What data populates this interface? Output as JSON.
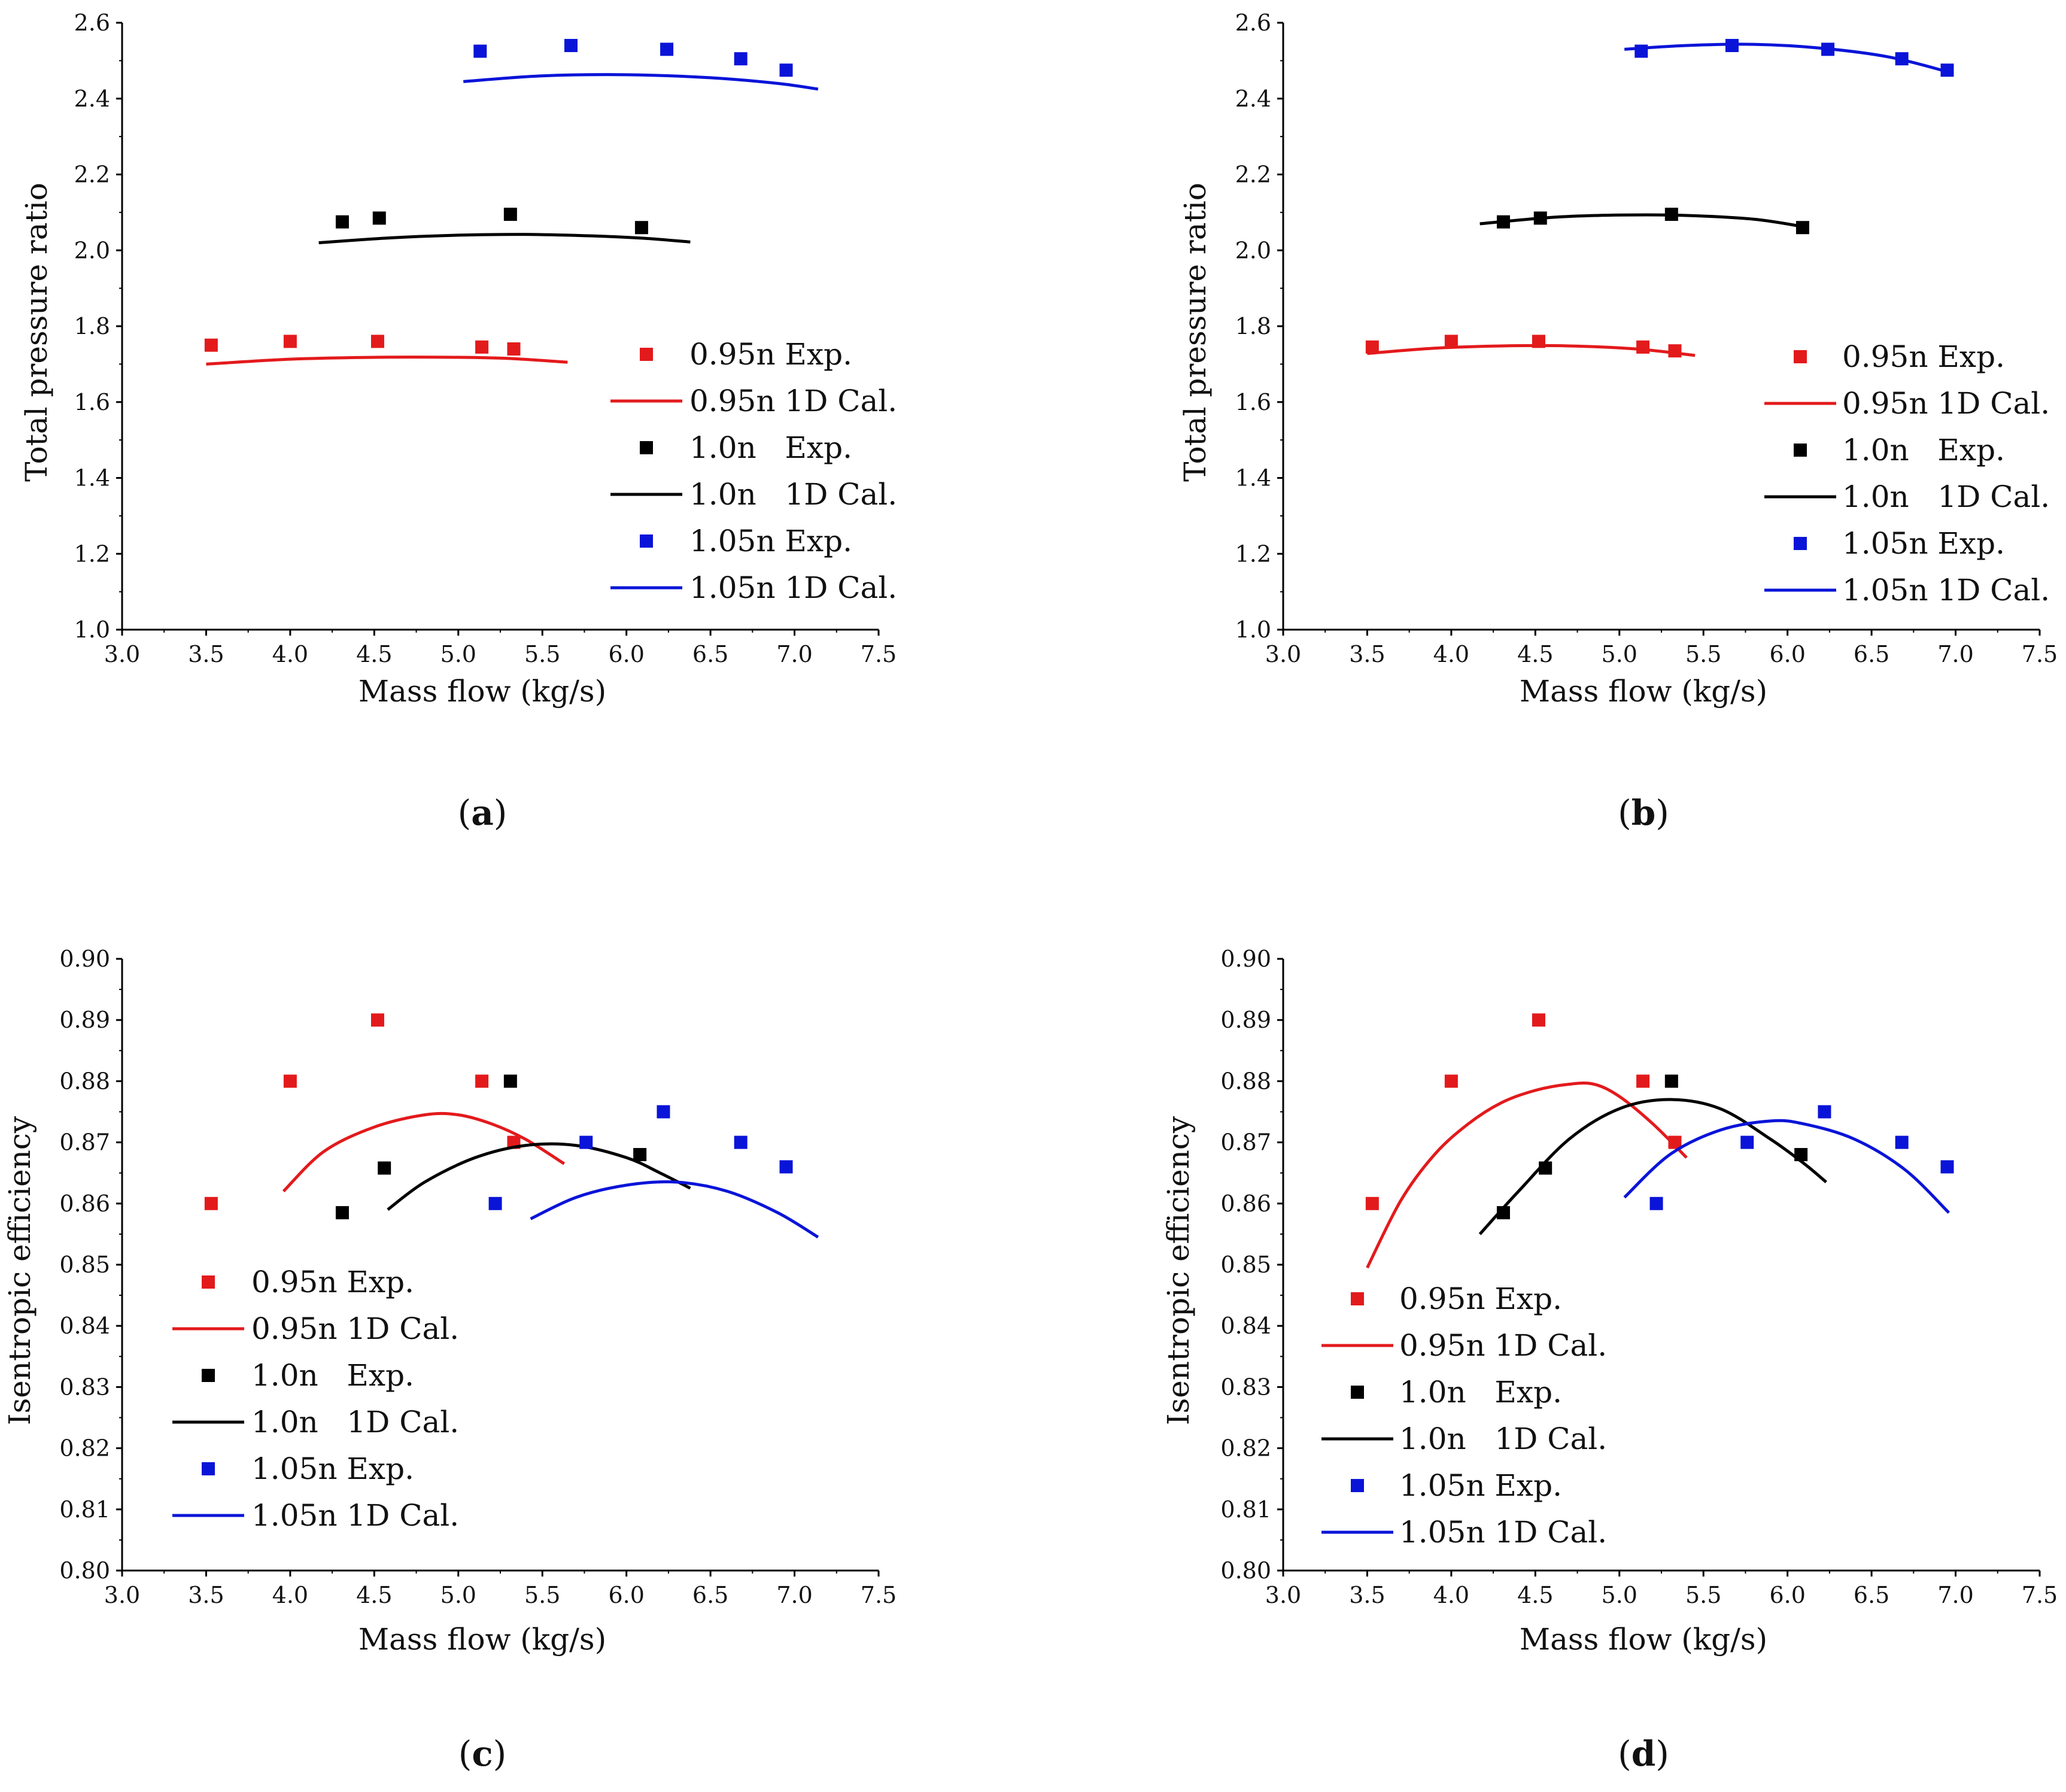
{
  "colors": {
    "red": "#e31a1c",
    "black": "#000000",
    "blue": "#0a14d8"
  },
  "chart_data": [
    {
      "id": "a",
      "type": "scatter+line",
      "panel_label": "a",
      "xlabel": "Mass flow (kg/s)",
      "ylabel": "Total pressure ratio",
      "xlim": [
        3.0,
        7.5
      ],
      "ylim": [
        1.0,
        2.6
      ],
      "xticks": [
        3.0,
        3.5,
        4.0,
        4.5,
        5.0,
        5.5,
        6.0,
        6.5,
        7.0,
        7.5
      ],
      "yticks": [
        1.0,
        1.2,
        1.4,
        1.6,
        1.8,
        2.0,
        2.2,
        2.4,
        2.6
      ],
      "x_tick_labels": [
        "3.0",
        "3.5",
        "4.0",
        "4.5",
        "5.0",
        "5.5",
        "6.0",
        "6.5",
        "7.0",
        "7.5"
      ],
      "y_tick_labels": [
        "1.0",
        "1.2",
        "1.4",
        "1.6",
        "1.8",
        "2.0",
        "2.2",
        "2.4",
        "2.6"
      ],
      "legend_position": "right",
      "legend": [
        "0.95n Exp.",
        "0.95n 1D Cal.",
        "1.0n   Exp.",
        "1.0n   1D Cal.",
        "1.05n Exp.",
        "1.05n 1D Cal."
      ],
      "series": [
        {
          "name": "0.95n Exp.",
          "kind": "scatter",
          "color": "red",
          "x": [
            3.53,
            4.0,
            4.52,
            5.14,
            5.33
          ],
          "y": [
            1.75,
            1.76,
            1.76,
            1.745,
            1.74
          ]
        },
        {
          "name": "0.95n 1D Cal.",
          "kind": "line",
          "color": "red",
          "x": [
            3.5,
            4.0,
            4.5,
            5.0,
            5.3,
            5.65
          ],
          "y": [
            1.7,
            1.713,
            1.718,
            1.718,
            1.715,
            1.705
          ]
        },
        {
          "name": "1.0n   Exp.",
          "kind": "scatter",
          "color": "black",
          "x": [
            4.31,
            4.53,
            5.31,
            6.09
          ],
          "y": [
            2.075,
            2.085,
            2.095,
            2.06
          ]
        },
        {
          "name": "1.0n   1D Cal.",
          "kind": "line",
          "color": "black",
          "x": [
            4.17,
            4.6,
            5.0,
            5.4,
            5.8,
            6.1,
            6.38
          ],
          "y": [
            2.02,
            2.033,
            2.04,
            2.042,
            2.038,
            2.032,
            2.022
          ]
        },
        {
          "name": "1.05n Exp.",
          "kind": "scatter",
          "color": "blue",
          "x": [
            5.13,
            5.67,
            6.24,
            6.68,
            6.95
          ],
          "y": [
            2.525,
            2.54,
            2.53,
            2.505,
            2.475
          ]
        },
        {
          "name": "1.05n 1D Cal.",
          "kind": "line",
          "color": "blue",
          "x": [
            5.03,
            5.5,
            6.0,
            6.5,
            6.9,
            7.14
          ],
          "y": [
            2.445,
            2.46,
            2.463,
            2.455,
            2.44,
            2.425
          ]
        }
      ]
    },
    {
      "id": "b",
      "type": "scatter+line",
      "panel_label": "b",
      "xlabel": "Mass flow (kg/s)",
      "ylabel": "Total pressure ratio",
      "xlim": [
        3.0,
        7.5
      ],
      "ylim": [
        1.0,
        2.6
      ],
      "xticks": [
        3.0,
        3.5,
        4.0,
        4.5,
        5.0,
        5.5,
        6.0,
        6.5,
        7.0,
        7.5
      ],
      "yticks": [
        1.0,
        1.2,
        1.4,
        1.6,
        1.8,
        2.0,
        2.2,
        2.4,
        2.6
      ],
      "x_tick_labels": [
        "3.0",
        "3.5",
        "4.0",
        "4.5",
        "5.0",
        "5.5",
        "6.0",
        "6.5",
        "7.0",
        "7.5"
      ],
      "y_tick_labels": [
        "1.0",
        "1.2",
        "1.4",
        "1.6",
        "1.8",
        "2.0",
        "2.2",
        "2.4",
        "2.6"
      ],
      "legend_position": "right",
      "legend": [
        "0.95n Exp.",
        "0.95n 1D Cal.",
        "1.0n   Exp.",
        "1.0n   1D Cal.",
        "1.05n Exp.",
        "1.05n 1D Cal."
      ],
      "series": [
        {
          "name": "0.95n Exp.",
          "kind": "scatter",
          "color": "red",
          "x": [
            3.53,
            4.0,
            4.52,
            5.14,
            5.33
          ],
          "y": [
            1.745,
            1.76,
            1.76,
            1.745,
            1.735
          ]
        },
        {
          "name": "0.95n 1D Cal.",
          "kind": "line",
          "color": "red",
          "x": [
            3.5,
            3.9,
            4.3,
            4.7,
            5.1,
            5.45
          ],
          "y": [
            1.728,
            1.742,
            1.748,
            1.748,
            1.74,
            1.723
          ]
        },
        {
          "name": "1.0n   Exp.",
          "kind": "scatter",
          "color": "black",
          "x": [
            4.31,
            4.53,
            5.31,
            6.09
          ],
          "y": [
            2.075,
            2.085,
            2.095,
            2.06
          ]
        },
        {
          "name": "1.0n   1D Cal.",
          "kind": "line",
          "color": "black",
          "x": [
            4.17,
            4.6,
            5.0,
            5.4,
            5.8,
            6.1
          ],
          "y": [
            2.07,
            2.087,
            2.093,
            2.092,
            2.082,
            2.062
          ]
        },
        {
          "name": "1.05n Exp.",
          "kind": "scatter",
          "color": "blue",
          "x": [
            5.13,
            5.67,
            6.24,
            6.68,
            6.95
          ],
          "y": [
            2.525,
            2.54,
            2.53,
            2.505,
            2.475
          ]
        },
        {
          "name": "1.05n 1D Cal.",
          "kind": "line",
          "color": "blue",
          "x": [
            5.03,
            5.4,
            5.8,
            6.2,
            6.6,
            6.96
          ],
          "y": [
            2.53,
            2.54,
            2.543,
            2.533,
            2.51,
            2.47
          ]
        }
      ]
    },
    {
      "id": "c",
      "type": "scatter+line",
      "panel_label": "c",
      "xlabel": "Mass flow (kg/s)",
      "ylabel": "Isentropic efficiency",
      "xlim": [
        3.0,
        7.5
      ],
      "ylim": [
        0.8,
        0.9
      ],
      "xticks": [
        3.0,
        3.5,
        4.0,
        4.5,
        5.0,
        5.5,
        6.0,
        6.5,
        7.0,
        7.5
      ],
      "yticks": [
        0.8,
        0.81,
        0.82,
        0.83,
        0.84,
        0.85,
        0.86,
        0.87,
        0.88,
        0.89,
        0.9
      ],
      "x_tick_labels": [
        "3.0",
        "3.5",
        "4.0",
        "4.5",
        "5.0",
        "5.5",
        "6.0",
        "6.5",
        "7.0",
        "7.5"
      ],
      "y_tick_labels": [
        "0.80",
        "0.81",
        "0.82",
        "0.83",
        "0.84",
        "0.85",
        "0.86",
        "0.87",
        "0.88",
        "0.89",
        "0.90"
      ],
      "legend_position": "left",
      "legend": [
        "0.95n Exp.",
        "0.95n 1D Cal.",
        "1.0n   Exp.",
        "1.0n   1D Cal.",
        "1.05n Exp.",
        "1.05n 1D Cal."
      ],
      "series": [
        {
          "name": "0.95n Exp.",
          "kind": "scatter",
          "color": "red",
          "x": [
            3.53,
            4.0,
            4.52,
            5.14,
            5.33
          ],
          "y": [
            0.86,
            0.88,
            0.89,
            0.88,
            0.87
          ]
        },
        {
          "name": "0.95n 1D Cal.",
          "kind": "line",
          "color": "red",
          "x": [
            3.96,
            4.2,
            4.5,
            4.8,
            5.0,
            5.2,
            5.4,
            5.63
          ],
          "y": [
            0.862,
            0.8685,
            0.8725,
            0.8745,
            0.8745,
            0.873,
            0.8705,
            0.8665
          ]
        },
        {
          "name": "1.0n   Exp.",
          "kind": "scatter",
          "color": "black",
          "x": [
            4.31,
            4.56,
            5.31,
            6.08
          ],
          "y": [
            0.8585,
            0.8658,
            0.88,
            0.868
          ]
        },
        {
          "name": "1.0n   1D Cal.",
          "kind": "line",
          "color": "black",
          "x": [
            4.58,
            4.8,
            5.1,
            5.4,
            5.7,
            6.0,
            6.2,
            6.38
          ],
          "y": [
            0.859,
            0.8635,
            0.8675,
            0.8695,
            0.8695,
            0.8675,
            0.865,
            0.8625
          ]
        },
        {
          "name": "1.05n Exp.",
          "kind": "scatter",
          "color": "blue",
          "x": [
            5.22,
            5.76,
            6.22,
            6.68,
            6.95
          ],
          "y": [
            0.86,
            0.87,
            0.875,
            0.87,
            0.866
          ]
        },
        {
          "name": "1.05n 1D Cal.",
          "kind": "line",
          "color": "blue",
          "x": [
            5.43,
            5.7,
            6.0,
            6.3,
            6.6,
            6.9,
            7.14
          ],
          "y": [
            0.8575,
            0.861,
            0.863,
            0.8635,
            0.862,
            0.8585,
            0.8545
          ]
        }
      ]
    },
    {
      "id": "d",
      "type": "scatter+line",
      "panel_label": "d",
      "xlabel": "Mass flow (kg/s)",
      "ylabel": "Isentropic efficiency",
      "xlim": [
        3.0,
        7.5
      ],
      "ylim": [
        0.8,
        0.9
      ],
      "xticks": [
        3.0,
        3.5,
        4.0,
        4.5,
        5.0,
        5.5,
        6.0,
        6.5,
        7.0,
        7.5
      ],
      "yticks": [
        0.8,
        0.81,
        0.82,
        0.83,
        0.84,
        0.85,
        0.86,
        0.87,
        0.88,
        0.89,
        0.9
      ],
      "x_tick_labels": [
        "3.0",
        "3.5",
        "4.0",
        "4.5",
        "5.0",
        "5.5",
        "6.0",
        "6.5",
        "7.0",
        "7.5"
      ],
      "y_tick_labels": [
        "0.80",
        "0.81",
        "0.82",
        "0.83",
        "0.84",
        "0.85",
        "0.86",
        "0.87",
        "0.88",
        "0.89",
        "0.90"
      ],
      "legend_position": "left",
      "legend": [
        "0.95n Exp.",
        "0.95n 1D Cal.",
        "1.0n   Exp.",
        "1.0n   1D Cal.",
        "1.05n Exp.",
        "1.05n 1D Cal."
      ],
      "series": [
        {
          "name": "0.95n Exp.",
          "kind": "scatter",
          "color": "red",
          "x": [
            3.53,
            4.0,
            4.52,
            5.14,
            5.33
          ],
          "y": [
            0.86,
            0.88,
            0.89,
            0.88,
            0.87
          ]
        },
        {
          "name": "0.95n 1D Cal.",
          "kind": "line",
          "color": "red",
          "x": [
            3.5,
            3.7,
            3.9,
            4.1,
            4.3,
            4.5,
            4.7,
            4.85,
            5.0,
            5.2,
            5.4
          ],
          "y": [
            0.8495,
            0.8605,
            0.868,
            0.873,
            0.8765,
            0.8785,
            0.8795,
            0.8795,
            0.8775,
            0.873,
            0.8675
          ]
        },
        {
          "name": "1.0n   Exp.",
          "kind": "scatter",
          "color": "black",
          "x": [
            4.31,
            4.56,
            5.31,
            6.08
          ],
          "y": [
            0.8585,
            0.8658,
            0.88,
            0.868
          ]
        },
        {
          "name": "1.0n   1D Cal.",
          "kind": "line",
          "color": "black",
          "x": [
            4.17,
            4.4,
            4.7,
            5.0,
            5.3,
            5.6,
            5.9,
            6.1,
            6.23
          ],
          "y": [
            0.855,
            0.862,
            0.8705,
            0.8755,
            0.877,
            0.8755,
            0.8705,
            0.8665,
            0.8635
          ]
        },
        {
          "name": "1.05n Exp.",
          "kind": "scatter",
          "color": "blue",
          "x": [
            5.22,
            5.76,
            6.22,
            6.68,
            6.95
          ],
          "y": [
            0.86,
            0.87,
            0.875,
            0.87,
            0.866
          ]
        },
        {
          "name": "1.05n 1D Cal.",
          "kind": "line",
          "color": "blue",
          "x": [
            5.03,
            5.3,
            5.6,
            5.9,
            6.1,
            6.4,
            6.7,
            6.96
          ],
          "y": [
            0.861,
            0.868,
            0.872,
            0.8735,
            0.873,
            0.8705,
            0.8655,
            0.8585
          ]
        }
      ]
    }
  ]
}
